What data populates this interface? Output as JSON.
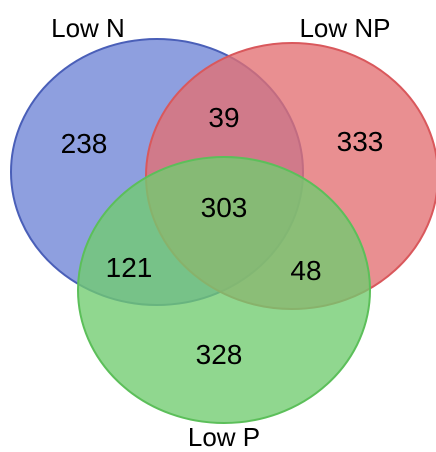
{
  "sets": [
    {
      "key": "low_n",
      "label": "Low N",
      "fill": "#6e84d6",
      "stroke": "#4a5fb8"
    },
    {
      "key": "low_np",
      "label": "Low NP",
      "fill": "#e36f72",
      "stroke": "#d9585c"
    },
    {
      "key": "low_p",
      "label": "Low P",
      "fill": "#71cc6f",
      "stroke": "#5cbf5a"
    }
  ],
  "regions": {
    "low_n_only": "238",
    "low_np_only": "333",
    "low_p_only": "328",
    "low_n_low_np": "39",
    "low_n_low_p": "121",
    "low_np_low_p": "48",
    "all_three": "303"
  }
}
